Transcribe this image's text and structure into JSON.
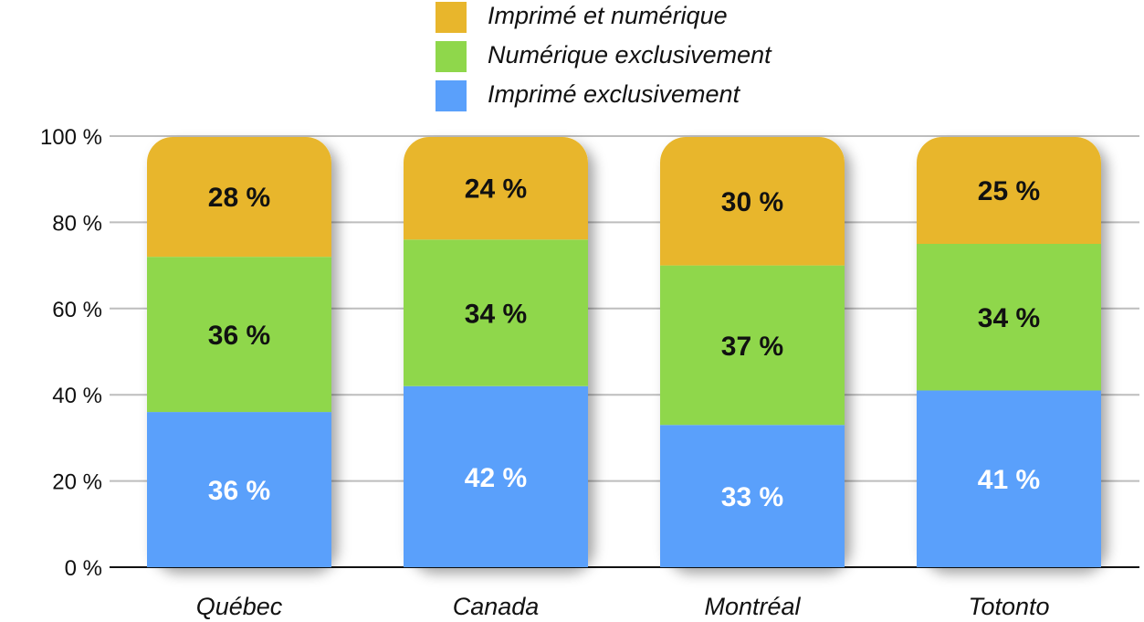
{
  "chart_data": {
    "type": "bar",
    "stacked": true,
    "categories": [
      "Québec",
      "Canada",
      "Montréal",
      "Totonto"
    ],
    "series": [
      {
        "name": "Imprimé exclusivement",
        "values": [
          36,
          42,
          33,
          41
        ],
        "labels": [
          "36 %",
          "42 %",
          "33 %",
          "41 %"
        ],
        "color": "#5aa0fb",
        "label_color": "#ffffff"
      },
      {
        "name": "Numérique exclusivement",
        "values": [
          36,
          34,
          37,
          34
        ],
        "labels": [
          "36 %",
          "34 %",
          "37 %",
          "34 %"
        ],
        "color": "#8fd74b",
        "label_color": "#111111"
      },
      {
        "name": "Imprimé et numérique",
        "values": [
          28,
          24,
          30,
          25
        ],
        "labels": [
          "28 %",
          "24 %",
          "30 %",
          "25 %"
        ],
        "color": "#e8b62c",
        "label_color": "#111111"
      }
    ],
    "legend": [
      "Imprimé et numérique",
      "Numérique exclusivement",
      "Imprimé exclusivement"
    ],
    "legend_placement": "top-center",
    "yticks": [
      "0 %",
      "20 %",
      "40 %",
      "60 %",
      "80 %",
      "100 %"
    ],
    "ylim": [
      0,
      100
    ],
    "grid": true,
    "title": "",
    "xlabel": "",
    "ylabel": ""
  }
}
